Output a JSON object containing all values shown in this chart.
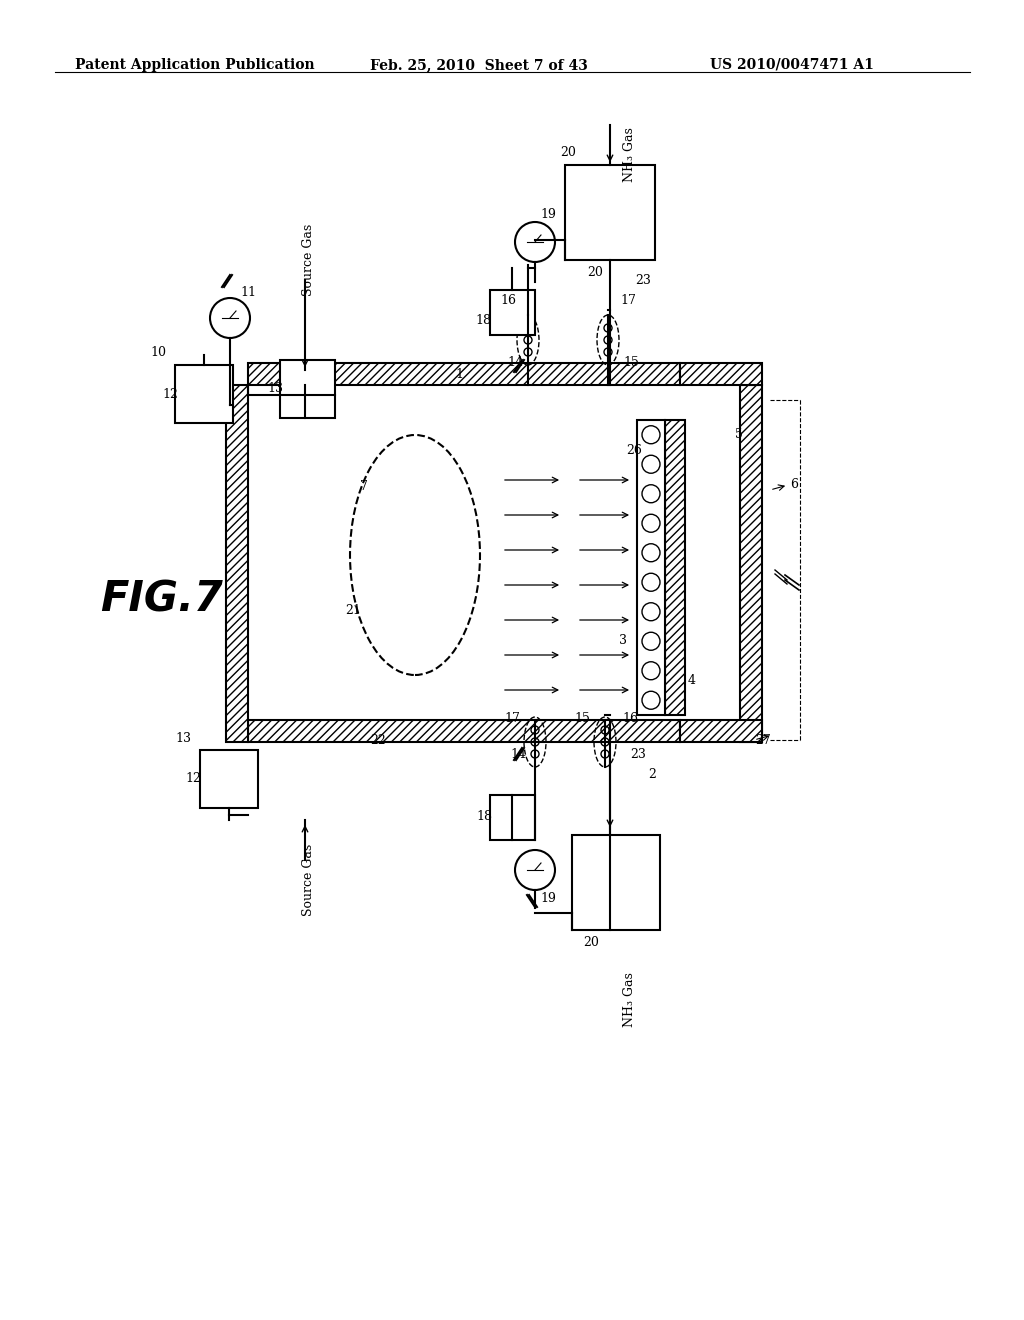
{
  "background_color": "#ffffff",
  "header_left": "Patent Application Publication",
  "header_center": "Feb. 25, 2010  Sheet 7 of 43",
  "header_right": "US 2010/0047471 A1",
  "figure_label": "FIG. 7",
  "header_fontsize": 10
}
